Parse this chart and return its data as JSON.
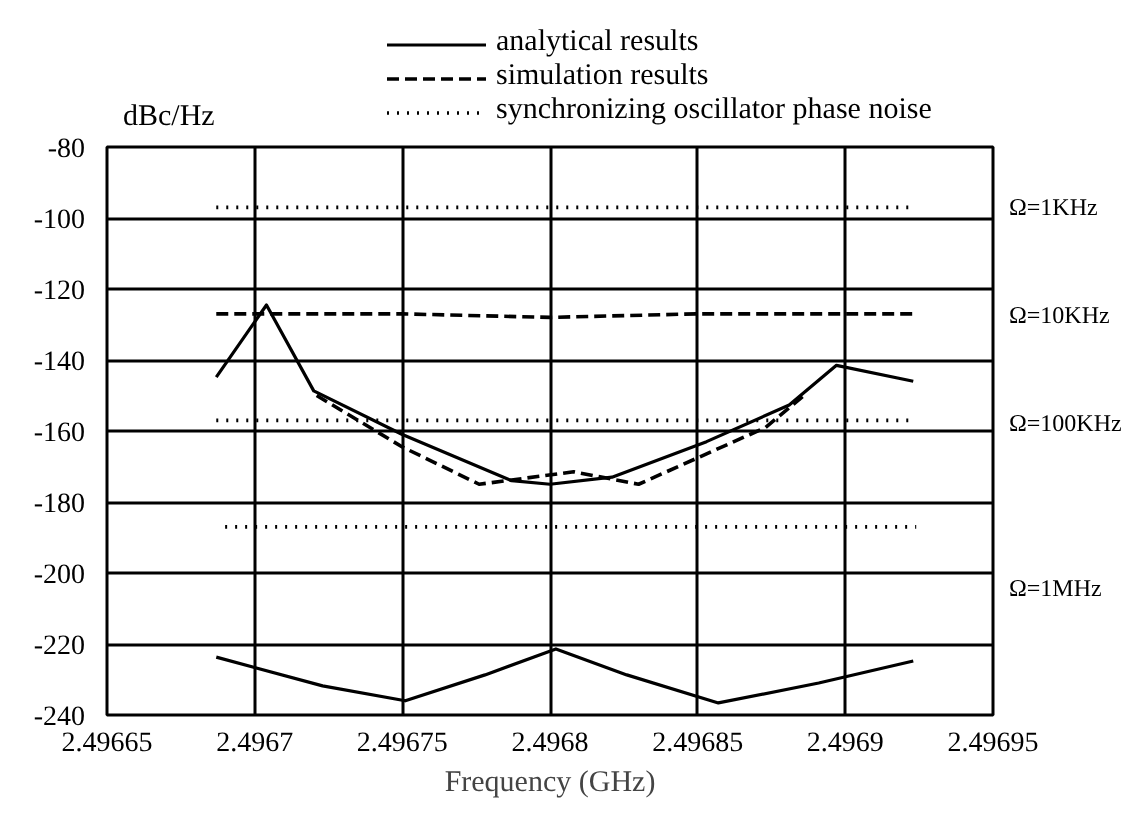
{
  "chart_data": {
    "type": "line",
    "xlabel": "Frequency (GHz)",
    "ylabel": "dBc/Hz",
    "xlim": [
      2.49665,
      2.49695
    ],
    "xticks": [
      2.49665,
      2.4967,
      2.49675,
      2.4968,
      2.49685,
      2.4969,
      2.49695
    ],
    "ylim": [
      -240,
      -80
    ],
    "yticks": [
      -240,
      -220,
      -200,
      -180,
      -160,
      -140,
      -120,
      -100,
      -80
    ],
    "grid": true,
    "legend": "top",
    "marker": "none",
    "series": [
      {
        "name": "analytical results",
        "color": "#000000",
        "line_style": "solid",
        "x": [
          2.496687,
          2.496704,
          2.49672,
          2.49675,
          2.496787,
          2.4968,
          2.496821,
          2.496853,
          2.496881,
          2.496897,
          2.496923
        ],
        "values": [
          -144.8,
          -124.5,
          -148.7,
          -161,
          -174,
          -175,
          -173,
          -163,
          -152.7,
          -141.5,
          -146
        ]
      },
      {
        "name": "simulation results",
        "color": "#000000",
        "line_style": "dashed",
        "x": [
          2.496721,
          2.49675,
          2.496776,
          2.496808,
          2.49683,
          2.496873,
          2.496886
        ],
        "values": [
          -150,
          -164.5,
          -175,
          -171.5,
          -175,
          -159,
          -150
        ]
      },
      {
        "name": "synchronizing oscillator phase noise",
        "color": "#000000",
        "line_style": "dotted",
        "x": [
          2.496687,
          2.496922
        ],
        "values": [
          -97,
          -97
        ]
      },
      {
        "color": "#000000",
        "line_style": "dashed",
        "x": [
          2.496687,
          2.49675,
          2.4968,
          2.49685,
          2.496923
        ],
        "values": [
          -127,
          -127,
          -128,
          -127,
          -127
        ]
      },
      {
        "color": "#000000",
        "line_style": "dotted",
        "x": [
          2.496687,
          2.496922
        ],
        "values": [
          -157,
          -157
        ]
      },
      {
        "color": "#000000",
        "line_style": "dotted",
        "x": [
          2.49669,
          2.496924
        ],
        "values": [
          -187,
          -187
        ]
      },
      {
        "color": "#000000",
        "line_style": "solid",
        "x": [
          2.496687,
          2.496723,
          2.496751,
          2.496778,
          2.496802,
          2.496826,
          2.496857,
          2.496891,
          2.496923
        ],
        "values": [
          -223.7,
          -231.8,
          -236,
          -228.7,
          -221.4,
          -228.7,
          -236.6,
          -231,
          -224.8
        ]
      }
    ],
    "annotations": [
      "Ω=1KHz",
      "Ω=10KHz",
      "Ω=100KHz",
      "Ω=1MHz"
    ]
  }
}
